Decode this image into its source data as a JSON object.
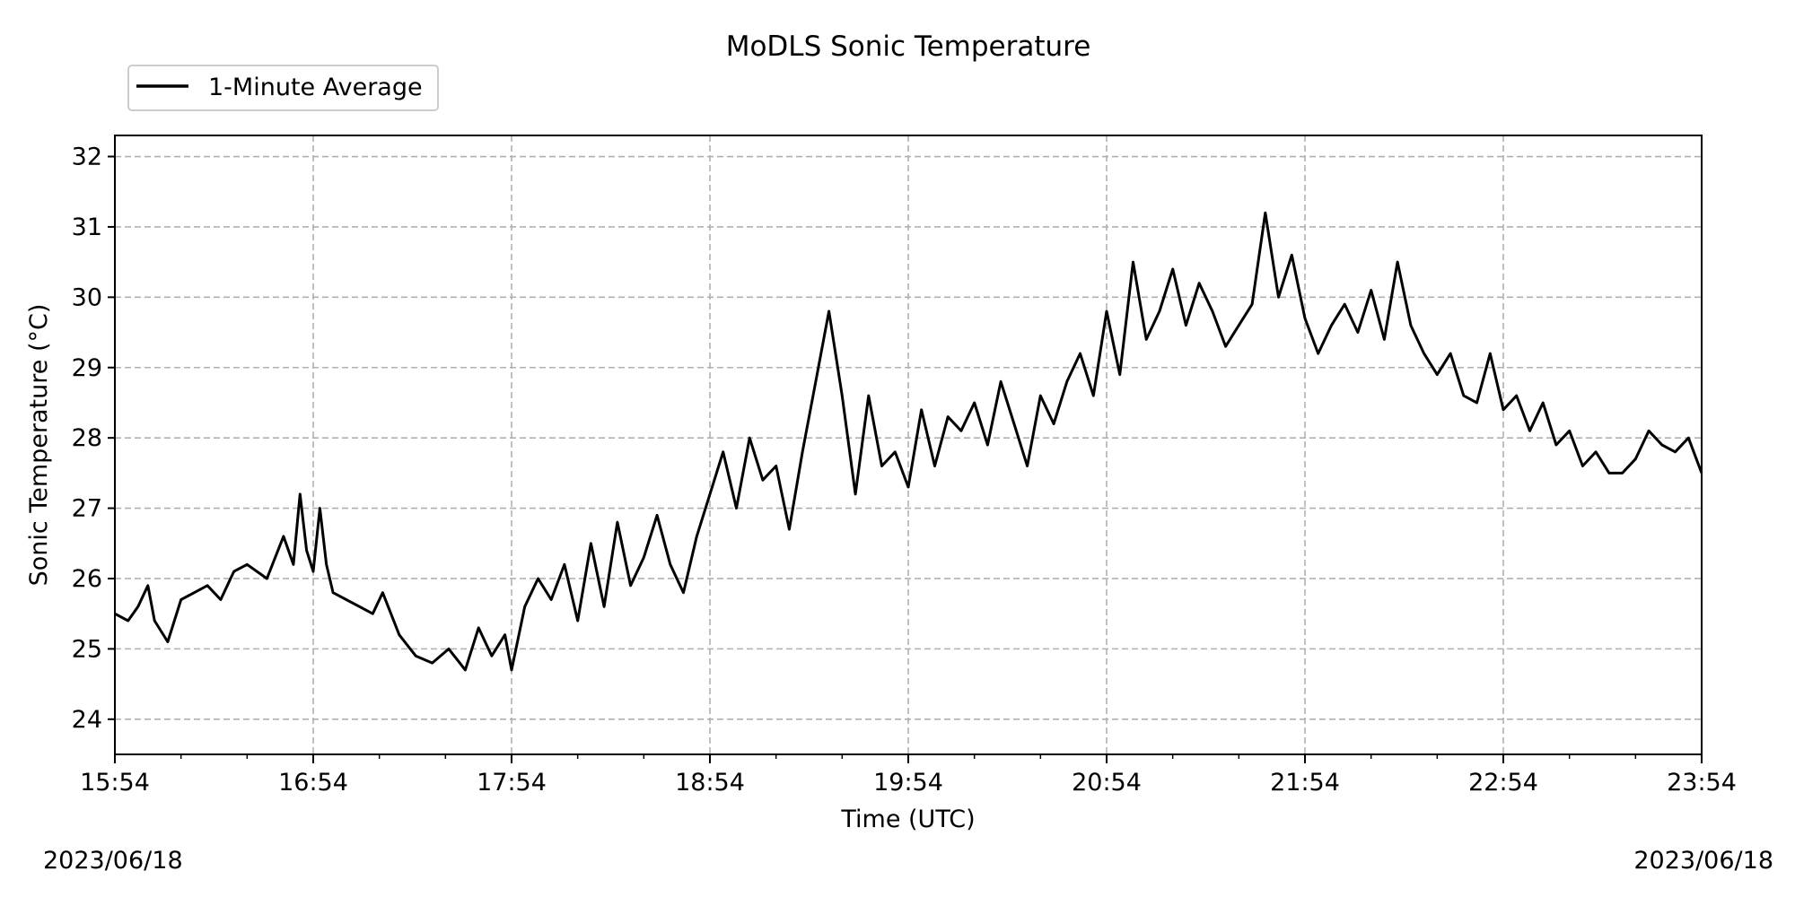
{
  "chart_data": {
    "type": "line",
    "title": "MoDLS Sonic Temperature",
    "xlabel": "Time (UTC)",
    "ylabel": "Sonic Temperature (°C)",
    "xlim": [
      "15:54",
      "23:54"
    ],
    "ylim": [
      23.5,
      32.3
    ],
    "x_ticks": [
      "15:54",
      "16:54",
      "17:54",
      "18:54",
      "19:54",
      "20:54",
      "21:54",
      "22:54",
      "23:54"
    ],
    "y_ticks": [
      "24",
      "25",
      "26",
      "27",
      "28",
      "29",
      "30",
      "31",
      "32"
    ],
    "grid": true,
    "legend_position": "top-left, above plot",
    "date_left": "2023/06/18",
    "date_right": "2023/06/18",
    "series": [
      {
        "name": "1-Minute Average",
        "color": "#000000",
        "x": [
          "15:54",
          "15:58",
          "16:01",
          "16:04",
          "16:06",
          "16:10",
          "16:14",
          "16:18",
          "16:22",
          "16:26",
          "16:30",
          "16:34",
          "16:40",
          "16:45",
          "16:48",
          "16:50",
          "16:52",
          "16:54",
          "16:56",
          "16:58",
          "17:00",
          "17:04",
          "17:08",
          "17:12",
          "17:15",
          "17:20",
          "17:25",
          "17:30",
          "17:35",
          "17:40",
          "17:44",
          "17:48",
          "17:52",
          "17:54",
          "17:58",
          "18:02",
          "18:06",
          "18:10",
          "18:14",
          "18:18",
          "18:22",
          "18:26",
          "18:30",
          "18:34",
          "18:38",
          "18:42",
          "18:46",
          "18:50",
          "18:54",
          "18:58",
          "19:02",
          "19:06",
          "19:10",
          "19:14",
          "19:18",
          "19:22",
          "19:26",
          "19:30",
          "19:34",
          "19:38",
          "19:42",
          "19:46",
          "19:50",
          "19:54",
          "19:58",
          "20:02",
          "20:06",
          "20:10",
          "20:14",
          "20:18",
          "20:22",
          "20:26",
          "20:30",
          "20:34",
          "20:38",
          "20:42",
          "20:46",
          "20:50",
          "20:54",
          "20:58",
          "21:02",
          "21:06",
          "21:10",
          "21:14",
          "21:18",
          "21:22",
          "21:26",
          "21:30",
          "21:34",
          "21:38",
          "21:42",
          "21:46",
          "21:50",
          "21:54",
          "21:58",
          "22:02",
          "22:06",
          "22:10",
          "22:14",
          "22:18",
          "22:22",
          "22:26",
          "22:30",
          "22:34",
          "22:38",
          "22:42",
          "22:46",
          "22:50",
          "22:54",
          "22:58",
          "23:02",
          "23:06",
          "23:10",
          "23:14",
          "23:18",
          "23:22",
          "23:26",
          "23:30",
          "23:34",
          "23:38",
          "23:42",
          "23:46",
          "23:50",
          "23:54"
        ],
        "values": [
          25.5,
          25.4,
          25.6,
          25.9,
          25.4,
          25.1,
          25.7,
          25.8,
          25.9,
          25.7,
          26.1,
          26.2,
          26.0,
          26.6,
          26.2,
          27.2,
          26.4,
          26.1,
          27.0,
          26.2,
          25.8,
          25.7,
          25.6,
          25.5,
          25.8,
          25.2,
          24.9,
          24.8,
          25.0,
          24.7,
          25.3,
          24.9,
          25.2,
          24.7,
          25.6,
          26.0,
          25.7,
          26.2,
          25.4,
          26.5,
          25.6,
          26.8,
          25.9,
          26.3,
          26.9,
          26.2,
          25.8,
          26.6,
          27.2,
          27.8,
          27.0,
          28.0,
          27.4,
          27.6,
          26.7,
          27.8,
          28.8,
          29.8,
          28.6,
          27.2,
          28.6,
          27.6,
          27.8,
          27.3,
          28.4,
          27.6,
          28.3,
          28.1,
          28.5,
          27.9,
          28.8,
          28.2,
          27.6,
          28.6,
          28.2,
          28.8,
          29.2,
          28.6,
          29.8,
          28.9,
          30.5,
          29.4,
          29.8,
          30.4,
          29.6,
          30.2,
          29.8,
          29.3,
          29.6,
          29.9,
          31.2,
          30.0,
          30.6,
          29.7,
          29.2,
          29.6,
          29.9,
          29.5,
          30.1,
          29.4,
          30.5,
          29.6,
          29.2,
          28.9,
          29.2,
          28.6,
          28.5,
          29.2,
          28.4,
          28.6,
          28.1,
          28.5,
          27.9,
          28.1,
          27.6,
          27.8,
          27.5,
          27.5,
          27.7,
          28.1,
          27.9,
          27.8,
          28.0,
          27.5
        ]
      }
    ]
  }
}
